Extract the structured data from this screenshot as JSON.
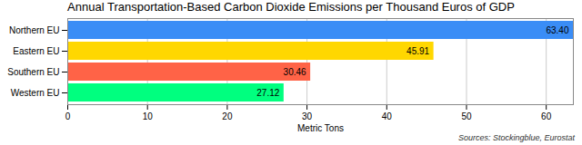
{
  "chart_data": {
    "type": "bar",
    "orientation": "horizontal",
    "title": "Annual Transportation-Based Carbon Dioxide Emissions per Thousand Euros of GDP",
    "categories": [
      "Northern EU",
      "Eastern EU",
      "Southern EU",
      "Western EU"
    ],
    "values": [
      63.4,
      45.91,
      30.46,
      27.12
    ],
    "value_labels": [
      "63.40",
      "45.91",
      "30.46",
      "27.12"
    ],
    "colors": [
      "#3a8df6",
      "#ffd700",
      "#ff6347",
      "#00ff7f"
    ],
    "xlabel": "Metric Tons",
    "xlim": [
      0,
      63.4
    ],
    "xticks": [
      0,
      10,
      20,
      30,
      40,
      50,
      60
    ],
    "grid": true,
    "data_labels": true,
    "caption": "Sources: Stockingblue, Eurostat"
  }
}
